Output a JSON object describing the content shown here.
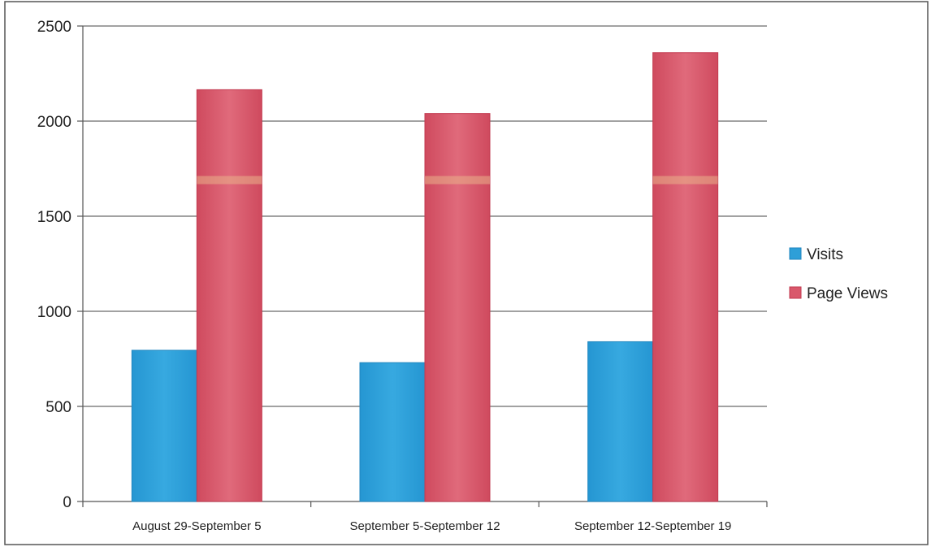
{
  "chart_data": {
    "type": "bar",
    "categories": [
      "August 29-September 5",
      "September 5-September 12",
      "September 12-September 19"
    ],
    "series": [
      {
        "name": "Visits",
        "values": [
          795,
          730,
          840
        ],
        "color": "#2e9fd8"
      },
      {
        "name": "Page Views",
        "values": [
          2165,
          2040,
          2360
        ],
        "color": "#d9586b"
      }
    ],
    "y_ticks": [
      "0",
      "500",
      "1000",
      "1500",
      "2000",
      "2500"
    ],
    "ylim": [
      0,
      2500
    ],
    "grid": true,
    "legend": "right"
  }
}
